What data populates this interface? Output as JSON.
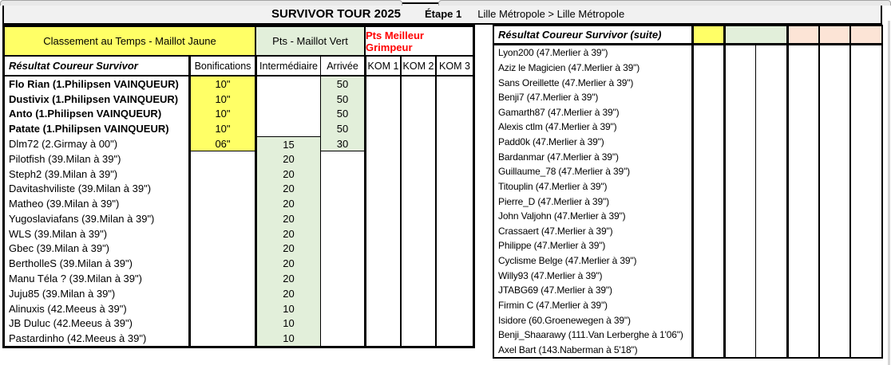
{
  "window": {
    "title": "SURVIVOR TOUR 2025",
    "stage": "Étape 1",
    "route": "Lille Métropole > Lille Métropole"
  },
  "left_table": {
    "group_headers": {
      "time": "Classement au Temps - Maillot Jaune",
      "sprint": "Pts - Maillot Vert",
      "climber": "Pts Meilleur Grimpeur"
    },
    "column_headers": {
      "result": "Résultat  Coureur Survivor",
      "bonifications": "Bonifications",
      "intermediaire": "Intermédiaire",
      "arrivee": "Arrivée",
      "kom1": "KOM 1",
      "kom2": "KOM 2",
      "kom3": "KOM 3"
    },
    "rows": [
      {
        "name": "Flo Rian (1.Philipsen VAINQUEUR)",
        "bold": true,
        "bonification": "10\"",
        "intermediaire": "",
        "arrivee": "50",
        "kom1": "",
        "kom2": "",
        "kom3": ""
      },
      {
        "name": "Dustivix (1.Philipsen VAINQUEUR)",
        "bold": true,
        "bonification": "10\"",
        "intermediaire": "",
        "arrivee": "50",
        "kom1": "",
        "kom2": "",
        "kom3": ""
      },
      {
        "name": "Anto (1.Philipsen VAINQUEUR)",
        "bold": true,
        "bonification": "10\"",
        "intermediaire": "",
        "arrivee": "50",
        "kom1": "",
        "kom2": "",
        "kom3": ""
      },
      {
        "name": "Patate (1.Philipsen VAINQUEUR)",
        "bold": true,
        "bonification": "10\"",
        "intermediaire": "",
        "arrivee": "50",
        "kom1": "",
        "kom2": "",
        "kom3": ""
      },
      {
        "name": "Dlm72 (2.Girmay à 00\")",
        "bold": false,
        "bonification": "06\"",
        "intermediaire": "15",
        "arrivee": "30",
        "kom1": "",
        "kom2": "",
        "kom3": ""
      },
      {
        "name": "Pilotfish (39.Milan à 39\")",
        "bold": false,
        "bonification": "",
        "intermediaire": "20",
        "arrivee": "",
        "kom1": "",
        "kom2": "",
        "kom3": ""
      },
      {
        "name": "Steph2 (39.Milan à 39\")",
        "bold": false,
        "bonification": "",
        "intermediaire": "20",
        "arrivee": "",
        "kom1": "",
        "kom2": "",
        "kom3": ""
      },
      {
        "name": "Davitashviliste (39.Milan à 39\")",
        "bold": false,
        "bonification": "",
        "intermediaire": "20",
        "arrivee": "",
        "kom1": "",
        "kom2": "",
        "kom3": ""
      },
      {
        "name": "Matheo (39.Milan à 39\")",
        "bold": false,
        "bonification": "",
        "intermediaire": "20",
        "arrivee": "",
        "kom1": "",
        "kom2": "",
        "kom3": ""
      },
      {
        "name": "Yugoslaviafans (39.Milan à 39\")",
        "bold": false,
        "bonification": "",
        "intermediaire": "20",
        "arrivee": "",
        "kom1": "",
        "kom2": "",
        "kom3": ""
      },
      {
        "name": "WLS (39.Milan à 39\")",
        "bold": false,
        "bonification": "",
        "intermediaire": "20",
        "arrivee": "",
        "kom1": "",
        "kom2": "",
        "kom3": ""
      },
      {
        "name": "Gbec (39.Milan à 39\")",
        "bold": false,
        "bonification": "",
        "intermediaire": "20",
        "arrivee": "",
        "kom1": "",
        "kom2": "",
        "kom3": ""
      },
      {
        "name": "BertholleS (39.Milan à 39\")",
        "bold": false,
        "bonification": "",
        "intermediaire": "20",
        "arrivee": "",
        "kom1": "",
        "kom2": "",
        "kom3": ""
      },
      {
        "name": "Manu Téla ? (39.Milan à 39\")",
        "bold": false,
        "bonification": "",
        "intermediaire": "20",
        "arrivee": "",
        "kom1": "",
        "kom2": "",
        "kom3": ""
      },
      {
        "name": "Juju85 (39.Milan à 39\")",
        "bold": false,
        "bonification": "",
        "intermediaire": "20",
        "arrivee": "",
        "kom1": "",
        "kom2": "",
        "kom3": ""
      },
      {
        "name": "Alinuxis (42.Meeus à 39\")",
        "bold": false,
        "bonification": "",
        "intermediaire": "10",
        "arrivee": "",
        "kom1": "",
        "kom2": "",
        "kom3": ""
      },
      {
        "name": "JB Duluc (42.Meeus à 39\")",
        "bold": false,
        "bonification": "",
        "intermediaire": "10",
        "arrivee": "",
        "kom1": "",
        "kom2": "",
        "kom3": ""
      },
      {
        "name": "Pastardinho (42.Meeus à 39\")",
        "bold": false,
        "bonification": "",
        "intermediaire": "10",
        "arrivee": "",
        "kom1": "",
        "kom2": "",
        "kom3": ""
      }
    ]
  },
  "right_table": {
    "header": "Résultat  Coureur Survivor (suite)",
    "rows": [
      "Lyon200 (47.Merlier à 39\")",
      "Aziz le Magicien (47.Merlier à 39\")",
      "Sans Oreillette (47.Merlier à 39\")",
      "Benji7 (47.Merlier à 39\")",
      "Gamarth87 (47.Merlier à 39\")",
      "Alexis ctlm (47.Merlier à 39\")",
      "Padd0k (47.Merlier à 39\")",
      "Bardanmar (47.Merlier à 39\")",
      "Guillaume_78 (47.Merlier à 39\")",
      "Titouplin (47.Merlier à 39\")",
      "Pierre_D (47.Merlier à 39\")",
      "John Valjohn (47.Merlier à 39\")",
      "Crassaert (47.Merlier à 39\")",
      "Philippe (47.Merlier à 39\")",
      "Cyclisme Belge (47.Merlier à 39\")",
      "Willy93 (47.Merlier à 39\")",
      "JTABG69 (47.Merlier à 39\")",
      "Firmin C (47.Merlier à 39\")",
      "Isidore (60.Groenewegen à 39\")",
      "Benji_Shaarawy (111.Van Lerberghe à 1'06\")",
      "Axel Bart (143.Naberman à 5'18\")"
    ]
  },
  "colors": {
    "maillot_jaune": "#FFFF66",
    "maillot_vert": "#E2EFDA",
    "grimpeur_peach": "#FCE4D6",
    "grimpeur_text": "#FF0000",
    "title_bar_bg": "#F1F1F1"
  }
}
